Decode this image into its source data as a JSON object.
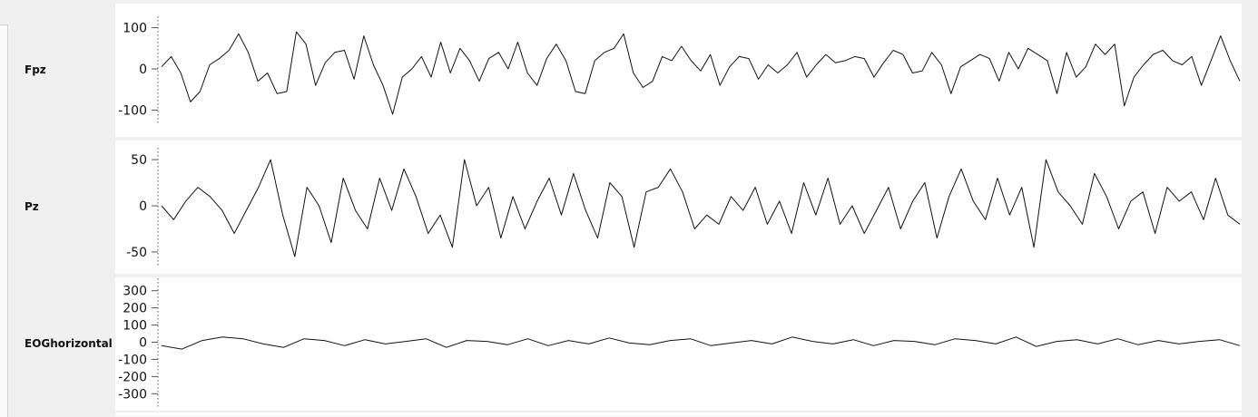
{
  "channels": {
    "fpz": {
      "label": "Fpz"
    },
    "pz": {
      "label": "Pz"
    },
    "eog": {
      "label": "EOGhorizontal"
    }
  },
  "chart_data": [
    {
      "type": "line",
      "name": "Fpz",
      "ylim": [
        -110,
        110
      ],
      "yticks": [
        -100,
        0,
        100
      ],
      "ytick_labels": [
        "-100",
        "0",
        "100"
      ],
      "y": [
        5,
        30,
        -10,
        -80,
        -55,
        10,
        25,
        45,
        85,
        40,
        -30,
        -10,
        -60,
        -55,
        90,
        60,
        -40,
        15,
        40,
        45,
        -25,
        80,
        10,
        -40,
        -110,
        -20,
        0,
        30,
        -20,
        65,
        -10,
        50,
        20,
        -30,
        25,
        40,
        0,
        65,
        -10,
        -40,
        25,
        60,
        20,
        -55,
        -60,
        20,
        40,
        50,
        85,
        -10,
        -45,
        -30,
        30,
        20,
        55,
        20,
        -5,
        35,
        -40,
        5,
        30,
        25,
        -25,
        10,
        -10,
        10,
        40,
        -20,
        10,
        35,
        15,
        20,
        30,
        25,
        -20,
        15,
        45,
        35,
        -10,
        -5,
        40,
        10,
        -60,
        5,
        20,
        35,
        25,
        -30,
        40,
        0,
        50,
        35,
        20,
        -60,
        40,
        -20,
        5,
        60,
        35,
        60,
        -90,
        -20,
        10,
        35,
        45,
        20,
        10,
        30,
        -40,
        20,
        80,
        20,
        -30
      ]
    },
    {
      "type": "line",
      "name": "Pz",
      "ylim": [
        -55,
        55
      ],
      "yticks": [
        -50,
        0,
        50
      ],
      "ytick_labels": [
        "-50",
        "0",
        "50"
      ],
      "y": [
        0,
        -15,
        5,
        20,
        10,
        -5,
        -30,
        -5,
        20,
        50,
        -10,
        -55,
        20,
        0,
        -40,
        30,
        -5,
        -25,
        30,
        -5,
        40,
        10,
        -30,
        -10,
        -45,
        50,
        0,
        20,
        -35,
        10,
        -25,
        5,
        30,
        -10,
        35,
        -5,
        -35,
        25,
        10,
        -45,
        15,
        20,
        40,
        15,
        -25,
        -10,
        -20,
        10,
        -5,
        20,
        -20,
        5,
        -30,
        25,
        -10,
        30,
        -20,
        0,
        -30,
        -5,
        20,
        -25,
        5,
        25,
        -35,
        10,
        40,
        5,
        -15,
        30,
        -10,
        20,
        -45,
        50,
        15,
        0,
        -20,
        35,
        10,
        -25,
        5,
        15,
        -30,
        20,
        5,
        15,
        -15,
        30,
        -10,
        -20
      ]
    },
    {
      "type": "line",
      "name": "EOGhorizontal",
      "ylim": [
        -330,
        330
      ],
      "yticks": [
        -300,
        -200,
        -100,
        0,
        100,
        200,
        300
      ],
      "ytick_labels": [
        "-300",
        "-200",
        "-100",
        "0",
        "100",
        "200",
        "300"
      ],
      "y": [
        -20,
        -40,
        10,
        30,
        20,
        -10,
        -30,
        20,
        10,
        -20,
        15,
        -10,
        5,
        20,
        -30,
        10,
        5,
        -15,
        20,
        -20,
        10,
        -10,
        25,
        -5,
        -15,
        10,
        20,
        -20,
        -5,
        10,
        -10,
        30,
        5,
        -10,
        15,
        -20,
        10,
        5,
        -15,
        20,
        10,
        -10,
        30,
        -25,
        5,
        15,
        -10,
        20,
        -15,
        10,
        -10,
        5,
        15,
        -20
      ]
    }
  ]
}
